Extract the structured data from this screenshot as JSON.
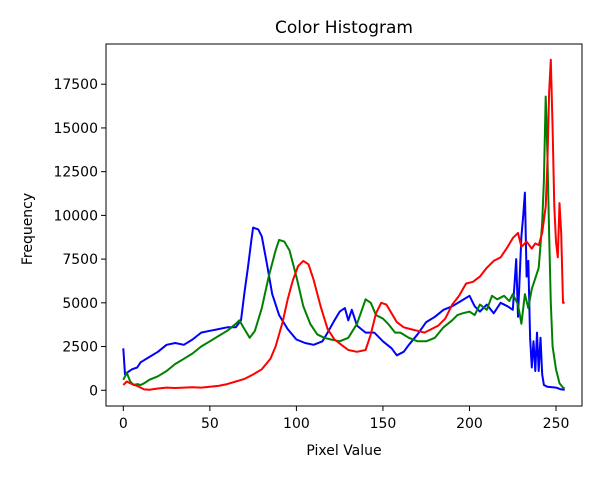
{
  "chart_data": {
    "type": "line",
    "title": "Color Histogram",
    "xlabel": "Pixel Value",
    "ylabel": "Frequency",
    "xlim": [
      -10,
      265
    ],
    "ylim": [
      -900,
      19800
    ],
    "grid": false,
    "x_ticks": [
      0,
      50,
      100,
      150,
      200,
      250
    ],
    "y_ticks": [
      0,
      2500,
      5000,
      7500,
      10000,
      12500,
      15000,
      17500
    ],
    "series": [
      {
        "color": "#0000ff",
        "points": [
          [
            0,
            2400
          ],
          [
            1,
            900
          ],
          [
            2,
            1000
          ],
          [
            5,
            1200
          ],
          [
            8,
            1300
          ],
          [
            10,
            1600
          ],
          [
            15,
            1900
          ],
          [
            20,
            2200
          ],
          [
            25,
            2600
          ],
          [
            30,
            2700
          ],
          [
            35,
            2600
          ],
          [
            40,
            2900
          ],
          [
            45,
            3300
          ],
          [
            50,
            3400
          ],
          [
            55,
            3500
          ],
          [
            60,
            3600
          ],
          [
            65,
            3600
          ],
          [
            68,
            4000
          ],
          [
            70,
            5600
          ],
          [
            72,
            7000
          ],
          [
            74,
            8600
          ],
          [
            75,
            9300
          ],
          [
            78,
            9200
          ],
          [
            80,
            8800
          ],
          [
            83,
            7200
          ],
          [
            86,
            5500
          ],
          [
            90,
            4300
          ],
          [
            95,
            3500
          ],
          [
            100,
            2900
          ],
          [
            105,
            2700
          ],
          [
            110,
            2600
          ],
          [
            115,
            2800
          ],
          [
            118,
            3300
          ],
          [
            122,
            4000
          ],
          [
            125,
            4500
          ],
          [
            128,
            4700
          ],
          [
            130,
            4000
          ],
          [
            132,
            4600
          ],
          [
            135,
            3700
          ],
          [
            140,
            3300
          ],
          [
            145,
            3300
          ],
          [
            150,
            2800
          ],
          [
            155,
            2400
          ],
          [
            158,
            2000
          ],
          [
            162,
            2200
          ],
          [
            165,
            2600
          ],
          [
            170,
            3200
          ],
          [
            175,
            3900
          ],
          [
            180,
            4200
          ],
          [
            185,
            4600
          ],
          [
            190,
            4800
          ],
          [
            195,
            5100
          ],
          [
            200,
            5400
          ],
          [
            203,
            4800
          ],
          [
            206,
            4500
          ],
          [
            210,
            4900
          ],
          [
            214,
            4400
          ],
          [
            218,
            5000
          ],
          [
            222,
            4800
          ],
          [
            225,
            4600
          ],
          [
            227,
            7500
          ],
          [
            228,
            4200
          ],
          [
            230,
            8800
          ],
          [
            231,
            9900
          ],
          [
            232,
            11300
          ],
          [
            233,
            6500
          ],
          [
            234,
            7400
          ],
          [
            235,
            3000
          ],
          [
            236,
            1300
          ],
          [
            237,
            2800
          ],
          [
            238,
            1100
          ],
          [
            239,
            3300
          ],
          [
            240,
            1100
          ],
          [
            241,
            3000
          ],
          [
            242,
            900
          ],
          [
            243,
            300
          ],
          [
            245,
            200
          ],
          [
            250,
            150
          ],
          [
            253,
            50
          ],
          [
            255,
            30
          ]
        ]
      },
      {
        "color": "#008000",
        "points": [
          [
            0,
            600
          ],
          [
            2,
            1000
          ],
          [
            4,
            500
          ],
          [
            6,
            300
          ],
          [
            8,
            350
          ],
          [
            10,
            300
          ],
          [
            12,
            400
          ],
          [
            15,
            600
          ],
          [
            20,
            800
          ],
          [
            25,
            1100
          ],
          [
            30,
            1500
          ],
          [
            35,
            1800
          ],
          [
            40,
            2100
          ],
          [
            45,
            2500
          ],
          [
            50,
            2800
          ],
          [
            55,
            3100
          ],
          [
            60,
            3400
          ],
          [
            65,
            3800
          ],
          [
            67,
            4000
          ],
          [
            70,
            3500
          ],
          [
            73,
            3000
          ],
          [
            76,
            3400
          ],
          [
            80,
            4700
          ],
          [
            84,
            6500
          ],
          [
            88,
            8000
          ],
          [
            90,
            8600
          ],
          [
            93,
            8500
          ],
          [
            96,
            8000
          ],
          [
            100,
            6500
          ],
          [
            104,
            4800
          ],
          [
            108,
            3800
          ],
          [
            112,
            3200
          ],
          [
            116,
            3000
          ],
          [
            120,
            2900
          ],
          [
            125,
            2800
          ],
          [
            130,
            3000
          ],
          [
            135,
            3800
          ],
          [
            140,
            5200
          ],
          [
            143,
            5000
          ],
          [
            146,
            4300
          ],
          [
            150,
            4100
          ],
          [
            153,
            3800
          ],
          [
            157,
            3300
          ],
          [
            160,
            3300
          ],
          [
            165,
            3000
          ],
          [
            170,
            2800
          ],
          [
            175,
            2800
          ],
          [
            180,
            3000
          ],
          [
            185,
            3600
          ],
          [
            190,
            4000
          ],
          [
            193,
            4300
          ],
          [
            196,
            4400
          ],
          [
            200,
            4500
          ],
          [
            203,
            4300
          ],
          [
            206,
            4900
          ],
          [
            210,
            4600
          ],
          [
            213,
            5400
          ],
          [
            216,
            5200
          ],
          [
            220,
            5400
          ],
          [
            223,
            5100
          ],
          [
            225,
            5500
          ],
          [
            228,
            4900
          ],
          [
            230,
            3800
          ],
          [
            232,
            5500
          ],
          [
            234,
            4700
          ],
          [
            236,
            5800
          ],
          [
            238,
            6400
          ],
          [
            240,
            7000
          ],
          [
            241,
            8300
          ],
          [
            242,
            9600
          ],
          [
            243,
            12000
          ],
          [
            244,
            16800
          ],
          [
            245,
            13500
          ],
          [
            246,
            9000
          ],
          [
            247,
            5000
          ],
          [
            248,
            2500
          ],
          [
            250,
            1200
          ],
          [
            252,
            400
          ],
          [
            254,
            150
          ],
          [
            255,
            100
          ]
        ]
      },
      {
        "color": "#ff0000",
        "points": [
          [
            0,
            300
          ],
          [
            2,
            500
          ],
          [
            5,
            350
          ],
          [
            8,
            250
          ],
          [
            10,
            150
          ],
          [
            12,
            50
          ],
          [
            15,
            30
          ],
          [
            20,
            100
          ],
          [
            25,
            150
          ],
          [
            30,
            130
          ],
          [
            35,
            150
          ],
          [
            40,
            170
          ],
          [
            45,
            150
          ],
          [
            50,
            200
          ],
          [
            55,
            250
          ],
          [
            60,
            350
          ],
          [
            65,
            500
          ],
          [
            70,
            650
          ],
          [
            75,
            900
          ],
          [
            80,
            1200
          ],
          [
            85,
            1800
          ],
          [
            88,
            2500
          ],
          [
            92,
            3900
          ],
          [
            95,
            5200
          ],
          [
            98,
            6300
          ],
          [
            101,
            7100
          ],
          [
            104,
            7400
          ],
          [
            107,
            7200
          ],
          [
            110,
            6300
          ],
          [
            114,
            4800
          ],
          [
            118,
            3500
          ],
          [
            122,
            2900
          ],
          [
            126,
            2600
          ],
          [
            130,
            2300
          ],
          [
            135,
            2200
          ],
          [
            140,
            2300
          ],
          [
            143,
            3200
          ],
          [
            146,
            4400
          ],
          [
            149,
            5000
          ],
          [
            152,
            4900
          ],
          [
            155,
            4400
          ],
          [
            158,
            3900
          ],
          [
            162,
            3600
          ],
          [
            166,
            3500
          ],
          [
            170,
            3400
          ],
          [
            174,
            3300
          ],
          [
            178,
            3500
          ],
          [
            182,
            3700
          ],
          [
            186,
            4100
          ],
          [
            190,
            4900
          ],
          [
            194,
            5400
          ],
          [
            198,
            6100
          ],
          [
            202,
            6200
          ],
          [
            206,
            6500
          ],
          [
            210,
            7000
          ],
          [
            214,
            7400
          ],
          [
            218,
            7600
          ],
          [
            222,
            8200
          ],
          [
            225,
            8700
          ],
          [
            228,
            9000
          ],
          [
            230,
            8200
          ],
          [
            233,
            8500
          ],
          [
            236,
            8100
          ],
          [
            238,
            8400
          ],
          [
            240,
            8300
          ],
          [
            242,
            9000
          ],
          [
            244,
            10500
          ],
          [
            245,
            13000
          ],
          [
            246,
            17000
          ],
          [
            247,
            18900
          ],
          [
            248,
            15000
          ],
          [
            249,
            10500
          ],
          [
            250,
            8500
          ],
          [
            251,
            7600
          ],
          [
            252,
            10700
          ],
          [
            253,
            9000
          ],
          [
            254,
            5000
          ],
          [
            255,
            5000
          ]
        ]
      }
    ]
  }
}
